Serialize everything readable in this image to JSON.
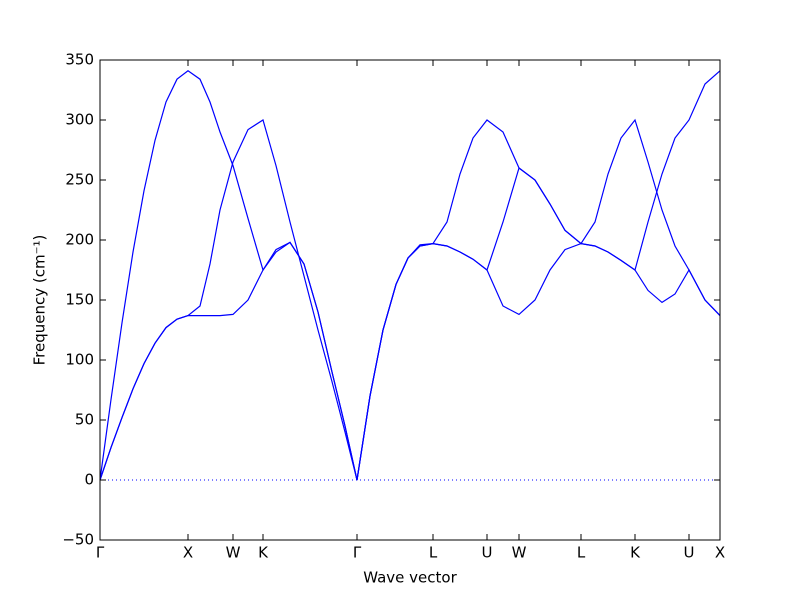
{
  "chart_data": {
    "type": "line",
    "xlabel": "Wave vector",
    "ylabel": "Frequency (cm⁻¹)",
    "x": [
      0,
      0.11,
      0.22,
      0.33,
      0.44,
      0.55,
      0.66,
      0.77,
      0.88,
      1.0,
      1.1,
      1.2,
      1.33,
      1.48,
      1.63,
      1.76,
      1.9,
      2.04,
      2.18,
      2.32,
      2.45,
      2.57,
      2.7,
      2.83,
      2.96,
      3.08,
      3.2,
      3.33,
      3.47,
      3.6,
      3.73,
      3.87,
      4.03,
      4.19,
      4.35,
      4.5,
      4.65,
      4.81,
      4.95,
      5.08,
      5.21,
      5.35,
      5.48,
      5.62,
      5.75,
      5.89,
      6.05,
      6.2
    ],
    "series": [
      {
        "color": "#0000ff",
        "values": [
          0,
          67,
          131,
          190,
          241,
          283,
          315,
          334,
          341,
          334,
          315,
          290,
          262,
          218,
          175,
          190,
          198,
          180,
          140,
          90,
          45,
          0,
          70,
          125,
          163,
          185,
          195,
          197,
          195,
          190,
          184,
          175,
          215,
          260,
          250,
          230,
          208,
          197,
          195,
          190,
          183,
          175,
          215,
          255,
          285,
          300,
          330,
          341
        ]
      },
      {
        "color": "#0000ff",
        "values": [
          0,
          27,
          52,
          76,
          97,
          114,
          127,
          134,
          137,
          137,
          137,
          137,
          138,
          150,
          175,
          192,
          198,
          180,
          140,
          90,
          45,
          0,
          70,
          125,
          163,
          185,
          195,
          197,
          195,
          190,
          184,
          175,
          145,
          138,
          150,
          175,
          192,
          197,
          195,
          190,
          183,
          175,
          158,
          148,
          155,
          175,
          150,
          137
        ]
      },
      {
        "color": "#0000ff",
        "values": [
          0,
          27,
          52,
          76,
          97,
          114,
          127,
          134,
          137,
          145,
          180,
          225,
          265,
          292,
          300,
          262,
          215,
          170,
          125,
          82,
          40,
          0,
          70,
          125,
          163,
          185,
          196,
          197,
          215,
          255,
          285,
          300,
          290,
          260,
          250,
          230,
          208,
          197,
          215,
          255,
          285,
          300,
          265,
          225,
          195,
          175,
          150,
          137
        ]
      }
    ],
    "xlim": [
      0,
      6.2
    ],
    "xticks": [
      {
        "value": 0,
        "label": "Γ"
      },
      {
        "value": 0.88,
        "label": "X"
      },
      {
        "value": 1.33,
        "label": "W"
      },
      {
        "value": 1.63,
        "label": "K"
      },
      {
        "value": 2.57,
        "label": "Γ"
      },
      {
        "value": 3.33,
        "label": "L"
      },
      {
        "value": 3.87,
        "label": "U"
      },
      {
        "value": 4.19,
        "label": "W"
      },
      {
        "value": 4.81,
        "label": "L"
      },
      {
        "value": 5.35,
        "label": "K"
      },
      {
        "value": 5.89,
        "label": "U"
      },
      {
        "value": 6.2,
        "label": "X"
      }
    ],
    "ylim": [
      -50,
      350
    ],
    "yticks": [
      {
        "value": -50,
        "label": "−50"
      },
      0,
      50,
      100,
      150,
      200,
      250,
      300,
      350
    ],
    "hlines": [
      0
    ],
    "hline_color": "#0000ff",
    "hline_style": "dotted",
    "grid": false
  }
}
